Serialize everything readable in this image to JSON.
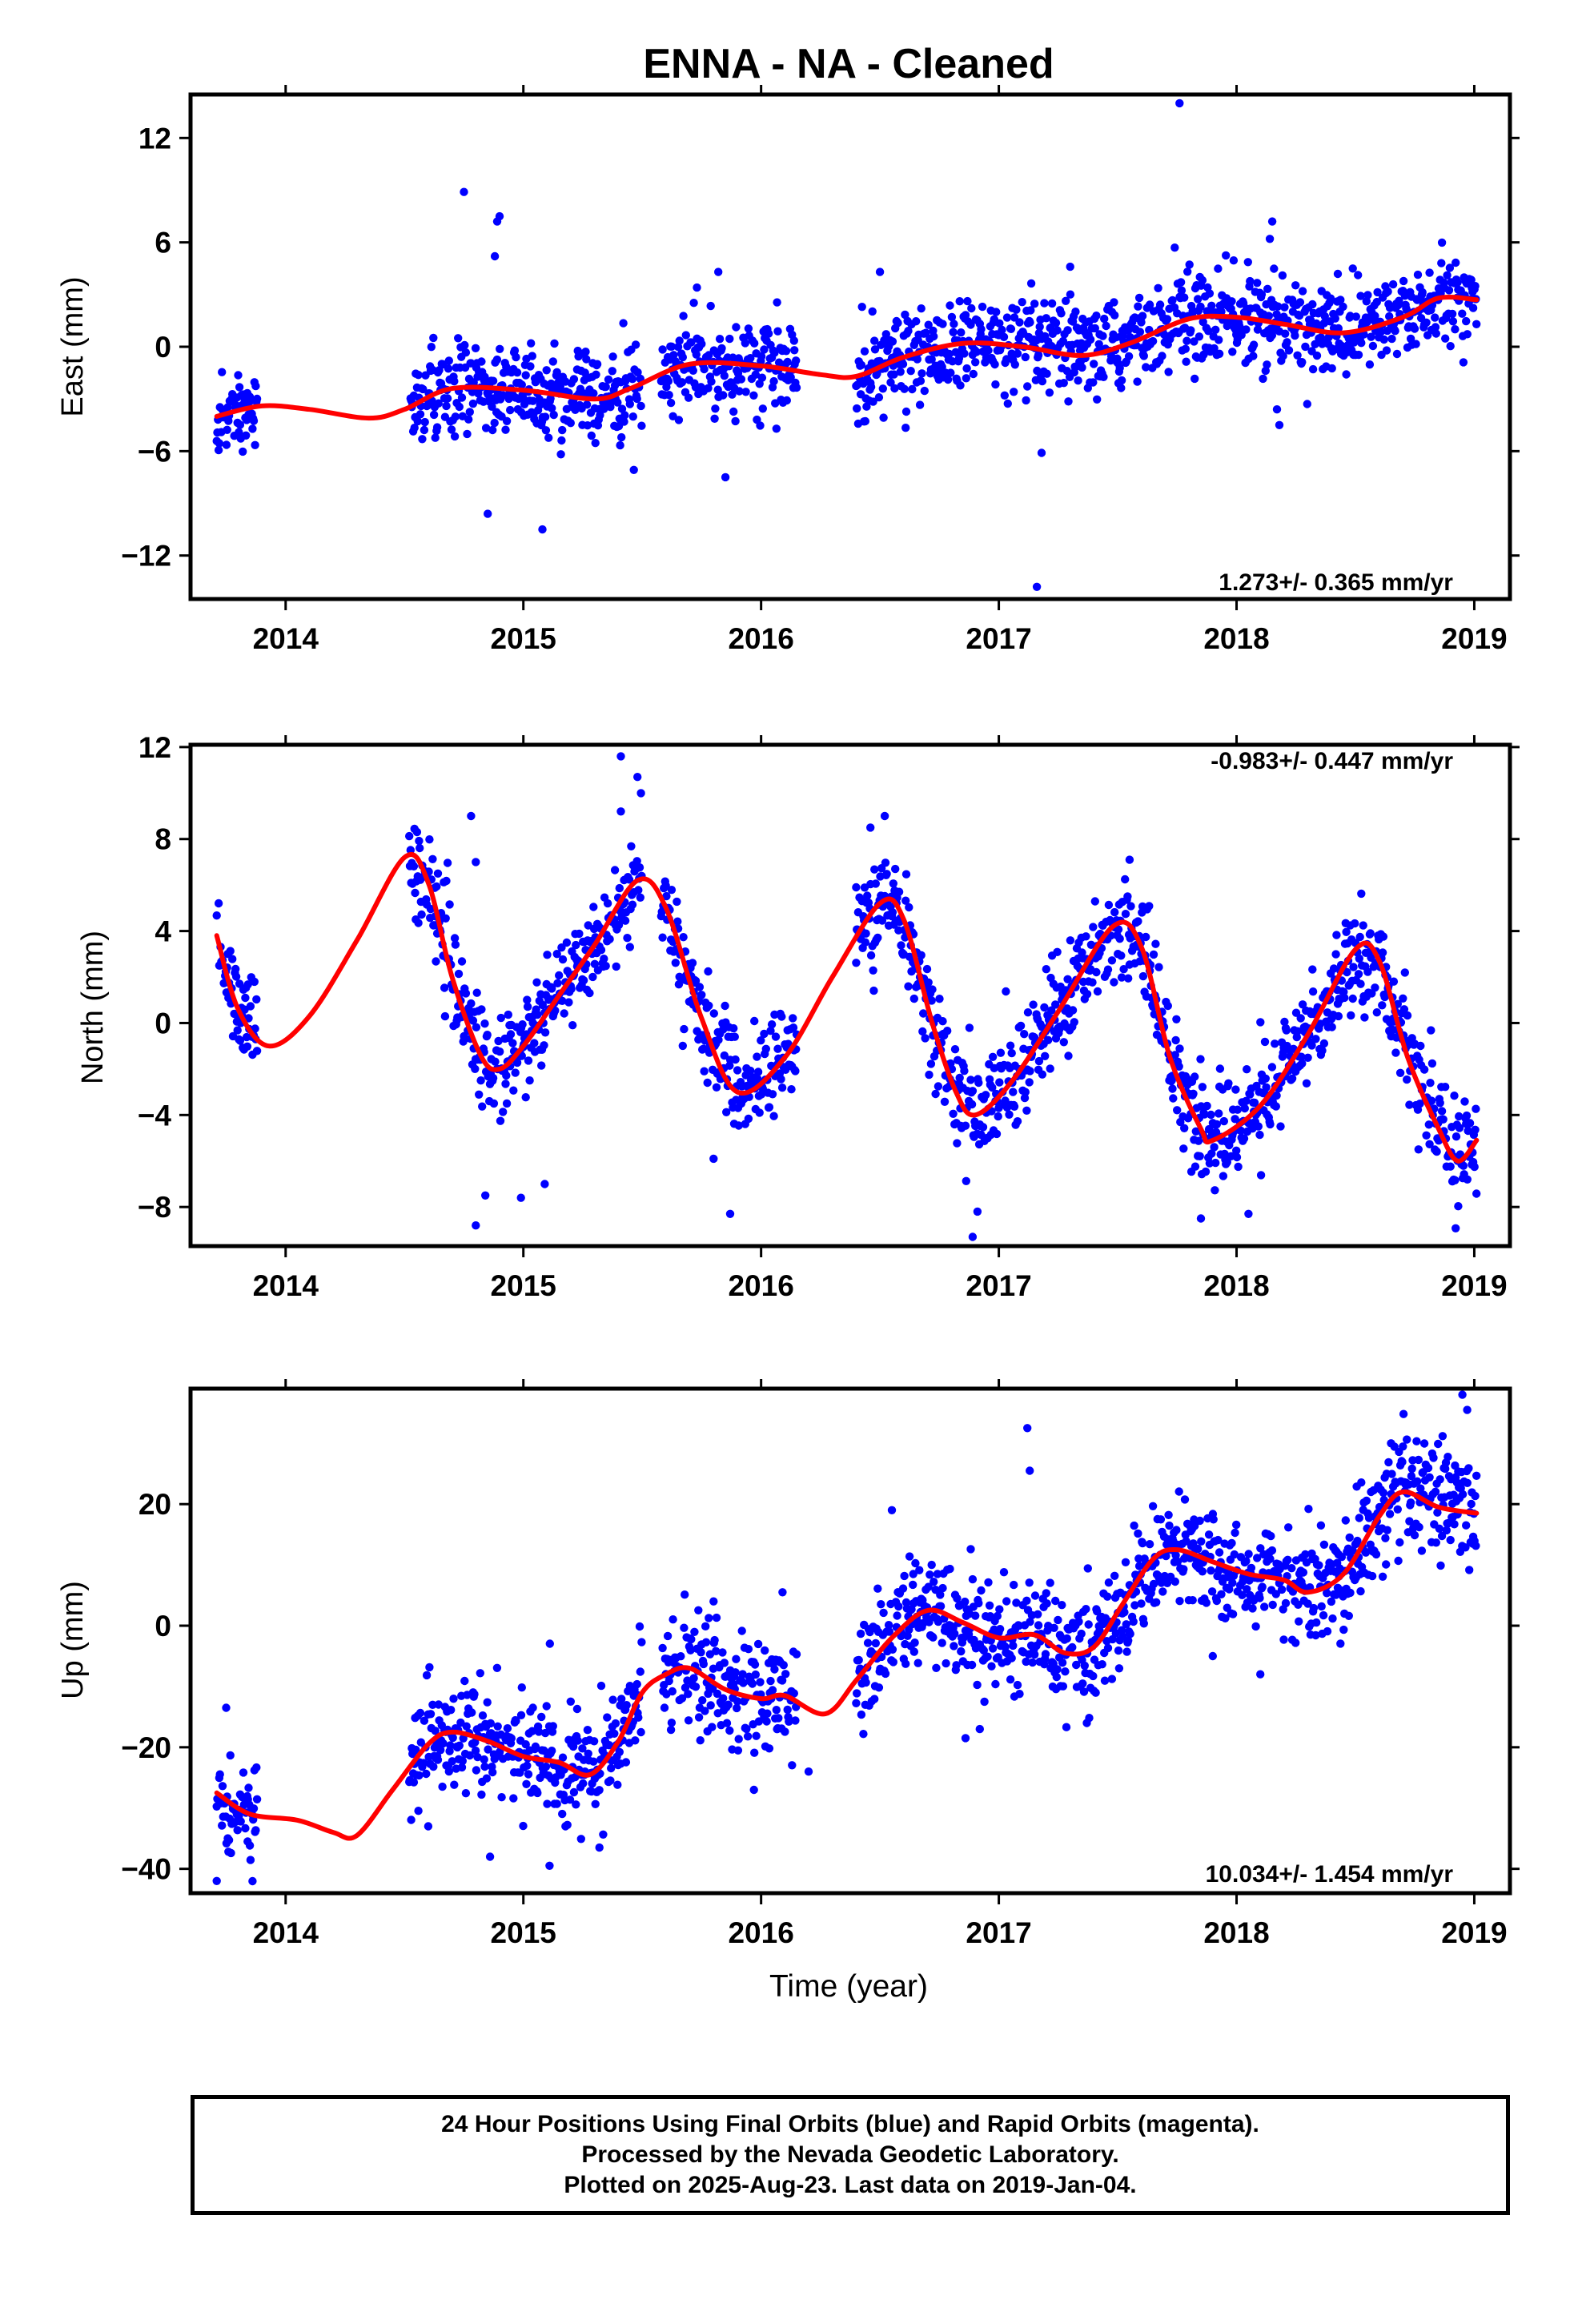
{
  "title": "ENNA  - NA - Cleaned",
  "colors": {
    "data_points": "#0000ff",
    "fit_line": "#ff0000",
    "axis": "#000000"
  },
  "chart_data": [
    {
      "type": "scatter",
      "component": "east",
      "ylabel": "East (mm)",
      "xlabel": "",
      "xlim": [
        2013.6,
        2019.15
      ],
      "ylim": [
        -14.5,
        14.5
      ],
      "yticks": [
        12,
        6,
        0,
        -6,
        -12
      ],
      "ytick_labels": [
        "12",
        "6",
        "0",
        "−6",
        "−12"
      ],
      "xticks": [
        2014,
        2015,
        2016,
        2017,
        2018,
        2019
      ],
      "xtick_labels": [
        "2014",
        "2015",
        "2016",
        "2017",
        "2018",
        "2019"
      ],
      "rate": "1.273+/- 0.365 mm/yr",
      "rate_position": "bottom-right",
      "grid": false,
      "segments": [
        [
          2013.71,
          2013.88
        ],
        [
          2014.52,
          2015.5
        ],
        [
          2015.58,
          2016.15
        ],
        [
          2016.4,
          2019.01
        ]
      ],
      "fit_line": {
        "x": [
          2013.71,
          2013.9,
          2014.1,
          2014.35,
          2014.5,
          2014.7,
          2015.0,
          2015.3,
          2015.45,
          2015.7,
          2016.0,
          2016.25,
          2016.4,
          2016.6,
          2016.85,
          2017.1,
          2017.35,
          2017.55,
          2017.8,
          2018.0,
          2018.2,
          2018.45,
          2018.7,
          2018.85,
          2019.01
        ],
        "y": [
          -4.0,
          -3.4,
          -3.6,
          -4.1,
          -3.6,
          -2.4,
          -2.5,
          -3.0,
          -2.4,
          -1.0,
          -1.1,
          -1.6,
          -1.7,
          -0.6,
          0.2,
          0.0,
          -0.5,
          0.2,
          1.6,
          1.7,
          1.3,
          0.8,
          1.7,
          2.8,
          2.7
        ]
      },
      "scatter": {
        "sd": 1.3,
        "outliers": [
          [
            2017.76,
            14.0
          ],
          [
            2014.75,
            8.9
          ],
          [
            2014.9,
            7.5
          ],
          [
            2014.89,
            7.2
          ],
          [
            2014.88,
            5.2
          ],
          [
            2016.14,
            -0.2
          ],
          [
            2014.85,
            -9.6
          ],
          [
            2015.08,
            -10.5
          ],
          [
            2017.16,
            -13.8
          ],
          [
            2017.18,
            -6.1
          ],
          [
            2015.73,
            3.4
          ],
          [
            2015.82,
            4.3
          ],
          [
            2018.14,
            6.2
          ],
          [
            2018.15,
            7.2
          ],
          [
            2018.18,
            -4.5
          ],
          [
            2018.17,
            -3.6
          ],
          [
            2015.85,
            -7.5
          ],
          [
            2017.3,
            4.6
          ],
          [
            2017.74,
            5.7
          ],
          [
            2016.5,
            4.3
          ]
        ]
      }
    },
    {
      "type": "scatter",
      "component": "north",
      "ylabel": "North (mm)",
      "xlabel": "",
      "xlim": [
        2013.6,
        2019.15
      ],
      "ylim": [
        -9.7,
        12.1
      ],
      "yticks": [
        12,
        8,
        4,
        0,
        -4,
        -8
      ],
      "ytick_labels": [
        "12",
        "8",
        "4",
        "0",
        "−4",
        "−8"
      ],
      "xticks": [
        2014,
        2015,
        2016,
        2017,
        2018,
        2019
      ],
      "xtick_labels": [
        "2014",
        "2015",
        "2016",
        "2017",
        "2018",
        "2019"
      ],
      "rate": "-0.983+/- 0.447 mm/yr",
      "rate_position": "top-right",
      "grid": false,
      "segments": [
        [
          2013.71,
          2013.88
        ],
        [
          2014.52,
          2015.5
        ],
        [
          2015.58,
          2016.15
        ],
        [
          2016.4,
          2019.01
        ]
      ],
      "fit_line": {
        "x": [
          2013.71,
          2013.8,
          2013.93,
          2014.1,
          2014.3,
          2014.5,
          2014.6,
          2014.7,
          2014.82,
          2014.9,
          2015.0,
          2015.15,
          2015.3,
          2015.48,
          2015.6,
          2015.75,
          2015.9,
          2016.1,
          2016.3,
          2016.5,
          2016.6,
          2016.72,
          2016.82,
          2016.9,
          2017.05,
          2017.25,
          2017.48,
          2017.6,
          2017.72,
          2017.85,
          2017.9,
          2018.1,
          2018.3,
          2018.5,
          2018.6,
          2018.72,
          2018.85,
          2018.93,
          2019.01
        ],
        "y": [
          3.8,
          0.6,
          -1.0,
          0.3,
          3.6,
          7.2,
          6.1,
          2.0,
          -1.4,
          -2.0,
          -1.0,
          1.2,
          3.4,
          6.2,
          5.0,
          0.2,
          -3.0,
          -1.5,
          2.0,
          5.2,
          4.5,
          0.0,
          -3.0,
          -4.0,
          -2.6,
          0.5,
          4.2,
          3.3,
          -1.5,
          -4.6,
          -5.1,
          -3.6,
          -0.5,
          3.2,
          2.7,
          -1.5,
          -4.6,
          -6.0,
          -5.1
        ]
      },
      "scatter": {
        "sd": 1.1,
        "outliers": [
          [
            2015.41,
            11.6
          ],
          [
            2015.48,
            10.7
          ],
          [
            2015.41,
            9.2
          ],
          [
            2014.78,
            9.0
          ],
          [
            2016.52,
            9.0
          ],
          [
            2016.46,
            8.5
          ],
          [
            2014.8,
            7.0
          ],
          [
            2017.55,
            7.1
          ],
          [
            2014.8,
            -8.8
          ],
          [
            2014.84,
            -7.5
          ],
          [
            2014.99,
            -7.6
          ],
          [
            2015.09,
            -7.0
          ],
          [
            2016.89,
            -9.3
          ],
          [
            2016.91,
            -8.2
          ],
          [
            2017.85,
            -8.5
          ],
          [
            2018.05,
            -8.3
          ],
          [
            2015.87,
            -8.3
          ],
          [
            2015.8,
            -5.9
          ],
          [
            2016.4,
            5.9
          ],
          [
            2017.73,
            -2.3
          ]
        ]
      }
    },
    {
      "type": "scatter",
      "component": "up",
      "ylabel": "Up (mm)",
      "xlabel": "Time (year)",
      "xlim": [
        2013.6,
        2019.15
      ],
      "ylim": [
        -44,
        39
      ],
      "yticks": [
        20,
        0,
        -20,
        -40
      ],
      "ytick_labels": [
        "20",
        "0",
        "−20",
        "−40"
      ],
      "xticks": [
        2014,
        2015,
        2016,
        2017,
        2018,
        2019
      ],
      "xtick_labels": [
        "2014",
        "2015",
        "2016",
        "2017",
        "2018",
        "2019"
      ],
      "rate": "10.034+/- 1.454 mm/yr",
      "rate_position": "bottom-right",
      "grid": false,
      "segments": [
        [
          2013.71,
          2013.88
        ],
        [
          2014.52,
          2015.5
        ],
        [
          2015.58,
          2016.15
        ],
        [
          2016.4,
          2019.01
        ]
      ],
      "fit_line": {
        "x": [
          2013.71,
          2013.85,
          2014.05,
          2014.2,
          2014.3,
          2014.45,
          2014.6,
          2014.7,
          2014.85,
          2015.0,
          2015.15,
          2015.28,
          2015.4,
          2015.5,
          2015.6,
          2015.7,
          2015.85,
          2016.0,
          2016.1,
          2016.27,
          2016.4,
          2016.55,
          2016.7,
          2016.85,
          2017.0,
          2017.15,
          2017.28,
          2017.4,
          2017.52,
          2017.65,
          2017.75,
          2017.9,
          2018.05,
          2018.2,
          2018.3,
          2018.45,
          2018.6,
          2018.7,
          2018.85,
          2019.01
        ],
        "y": [
          -27.5,
          -31.0,
          -32.0,
          -34.0,
          -34.5,
          -27.0,
          -19.5,
          -17.5,
          -19.0,
          -21.5,
          -22.5,
          -24.5,
          -19.0,
          -11.0,
          -8.0,
          -7.0,
          -10.5,
          -12.0,
          -11.5,
          -14.5,
          -9.0,
          -2.0,
          2.5,
          0.5,
          -2.0,
          -1.5,
          -4.5,
          -3.5,
          3.5,
          11.0,
          12.5,
          10.5,
          8.5,
          7.5,
          5.5,
          8.5,
          18.0,
          22.0,
          19.5,
          18.5
        ]
      },
      "scatter": {
        "sd": 4.5,
        "outliers": [
          [
            2017.12,
            32.5
          ],
          [
            2017.13,
            25.5
          ],
          [
            2018.95,
            38.0
          ],
          [
            2018.97,
            35.5
          ],
          [
            2016.55,
            19.0
          ],
          [
            2016.64,
            8.5
          ],
          [
            2013.71,
            -42.0
          ],
          [
            2013.75,
            -13.5
          ],
          [
            2013.84,
            -35.5
          ],
          [
            2014.86,
            -38.0
          ],
          [
            2015.11,
            -39.5
          ],
          [
            2015.32,
            -36.5
          ],
          [
            2015.97,
            -27.0
          ],
          [
            2016.2,
            -24.0
          ],
          [
            2016.86,
            -18.5
          ],
          [
            2016.92,
            -17.0
          ],
          [
            2017.37,
            -16.0
          ],
          [
            2018.1,
            -8.0
          ],
          [
            2018.65,
            30.0
          ],
          [
            2017.9,
            -5.0
          ],
          [
            2015.8,
            4.0
          ],
          [
            2016.09,
            5.5
          ],
          [
            2014.6,
            -33.0
          ]
        ]
      }
    }
  ],
  "footer": {
    "line1": "24 Hour Positions Using Final Orbits (blue) and Rapid Orbits (magenta).",
    "line2": "Processed by the Nevada Geodetic Laboratory.",
    "line3": "Plotted on 2025-Aug-23. Last data on 2019-Jan-04."
  }
}
